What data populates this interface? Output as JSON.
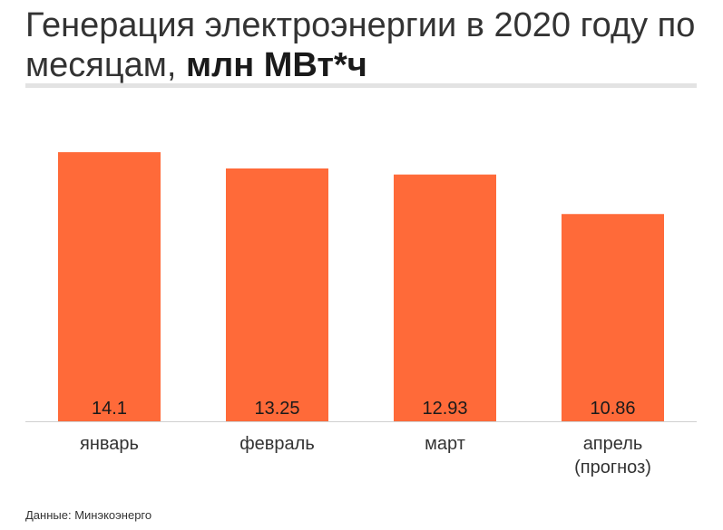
{
  "title": {
    "main": "Генерация электроэнергии в 2020 году по месяцам,",
    "unit": "млн МВт*ч"
  },
  "source": "Данные: Минэкоэнерго",
  "colors": {
    "bar": "#ff6a39",
    "baseline": "#d0d0d0",
    "label": "#1a1a1a",
    "category": "#333333"
  },
  "chart_data": {
    "type": "bar",
    "categories": [
      [
        "январь"
      ],
      [
        "февраль"
      ],
      [
        "март"
      ],
      [
        "апрель",
        "(прогноз)"
      ]
    ],
    "values": [
      14.1,
      13.25,
      12.93,
      10.86
    ],
    "value_labels": [
      "14.1",
      "13.25",
      "12.93",
      "10.86"
    ],
    "ylim": [
      0,
      14.1
    ],
    "grid": false,
    "legend": "none"
  }
}
